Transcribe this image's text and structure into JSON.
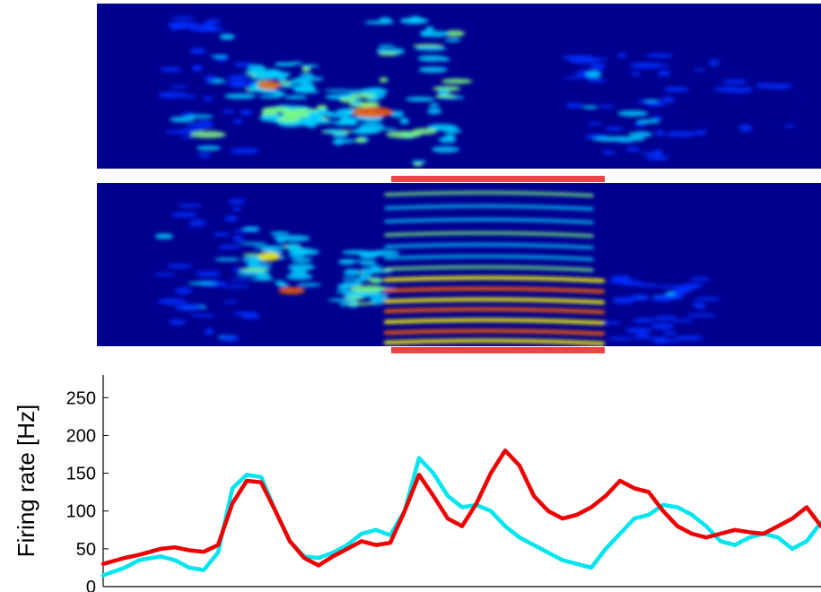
{
  "chart_data": [
    {
      "type": "heatmap",
      "description_role": "top spectrogram",
      "colormap": [
        "#00008f",
        "#0030ff",
        "#00d0ff",
        "#80ff80",
        "#ffff00",
        "#ff6000",
        "#c00000"
      ]
    },
    {
      "type": "heatmap",
      "description_role": "bottom spectrogram",
      "colormap": [
        "#00008f",
        "#0030ff",
        "#00d0ff",
        "#80ff80",
        "#ffff00",
        "#ff6000",
        "#c00000"
      ],
      "highlight_color": "#ee4444"
    },
    {
      "type": "line",
      "ylabel": "Firing rate [Hz]",
      "xlabel": "",
      "ylim": [
        0,
        280
      ],
      "yticks": [
        "0",
        "50",
        "100",
        "150",
        "200",
        "250"
      ],
      "xlim": [
        0,
        100
      ],
      "grid": false,
      "series": [
        {
          "color": "#00e5ee",
          "x": [
            0,
            3,
            5,
            8,
            10,
            12,
            14,
            16,
            18,
            20,
            22,
            24,
            26,
            28,
            30,
            32,
            34,
            36,
            38,
            40,
            42,
            44,
            46,
            48,
            50,
            52,
            54,
            56,
            58,
            60,
            62,
            64,
            66,
            68,
            70,
            72,
            74,
            76,
            78,
            80,
            82,
            84,
            86,
            88,
            90,
            92,
            94,
            96,
            98,
            100
          ],
          "values": [
            15,
            25,
            35,
            40,
            35,
            25,
            22,
            45,
            130,
            148,
            145,
            100,
            60,
            40,
            38,
            45,
            55,
            70,
            75,
            68,
            100,
            170,
            150,
            120,
            105,
            108,
            100,
            80,
            65,
            55,
            45,
            35,
            30,
            25,
            50,
            70,
            90,
            95,
            108,
            105,
            95,
            80,
            60,
            55,
            65,
            70,
            65,
            50,
            60,
            85
          ]
        },
        {
          "color": "#ee0000",
          "x": [
            0,
            3,
            5,
            8,
            10,
            12,
            14,
            16,
            18,
            20,
            22,
            24,
            26,
            28,
            30,
            32,
            34,
            36,
            38,
            40,
            42,
            44,
            46,
            48,
            50,
            52,
            54,
            56,
            58,
            60,
            62,
            64,
            66,
            68,
            70,
            72,
            74,
            76,
            78,
            80,
            82,
            84,
            86,
            88,
            90,
            92,
            94,
            96,
            98,
            100
          ],
          "values": [
            30,
            38,
            42,
            50,
            52,
            48,
            46,
            55,
            110,
            140,
            138,
            100,
            60,
            38,
            28,
            40,
            50,
            60,
            55,
            58,
            100,
            148,
            120,
            90,
            80,
            110,
            150,
            180,
            160,
            120,
            100,
            90,
            95,
            105,
            120,
            140,
            130,
            125,
            100,
            80,
            70,
            65,
            70,
            75,
            72,
            70,
            80,
            90,
            105,
            80
          ]
        }
      ]
    }
  ]
}
